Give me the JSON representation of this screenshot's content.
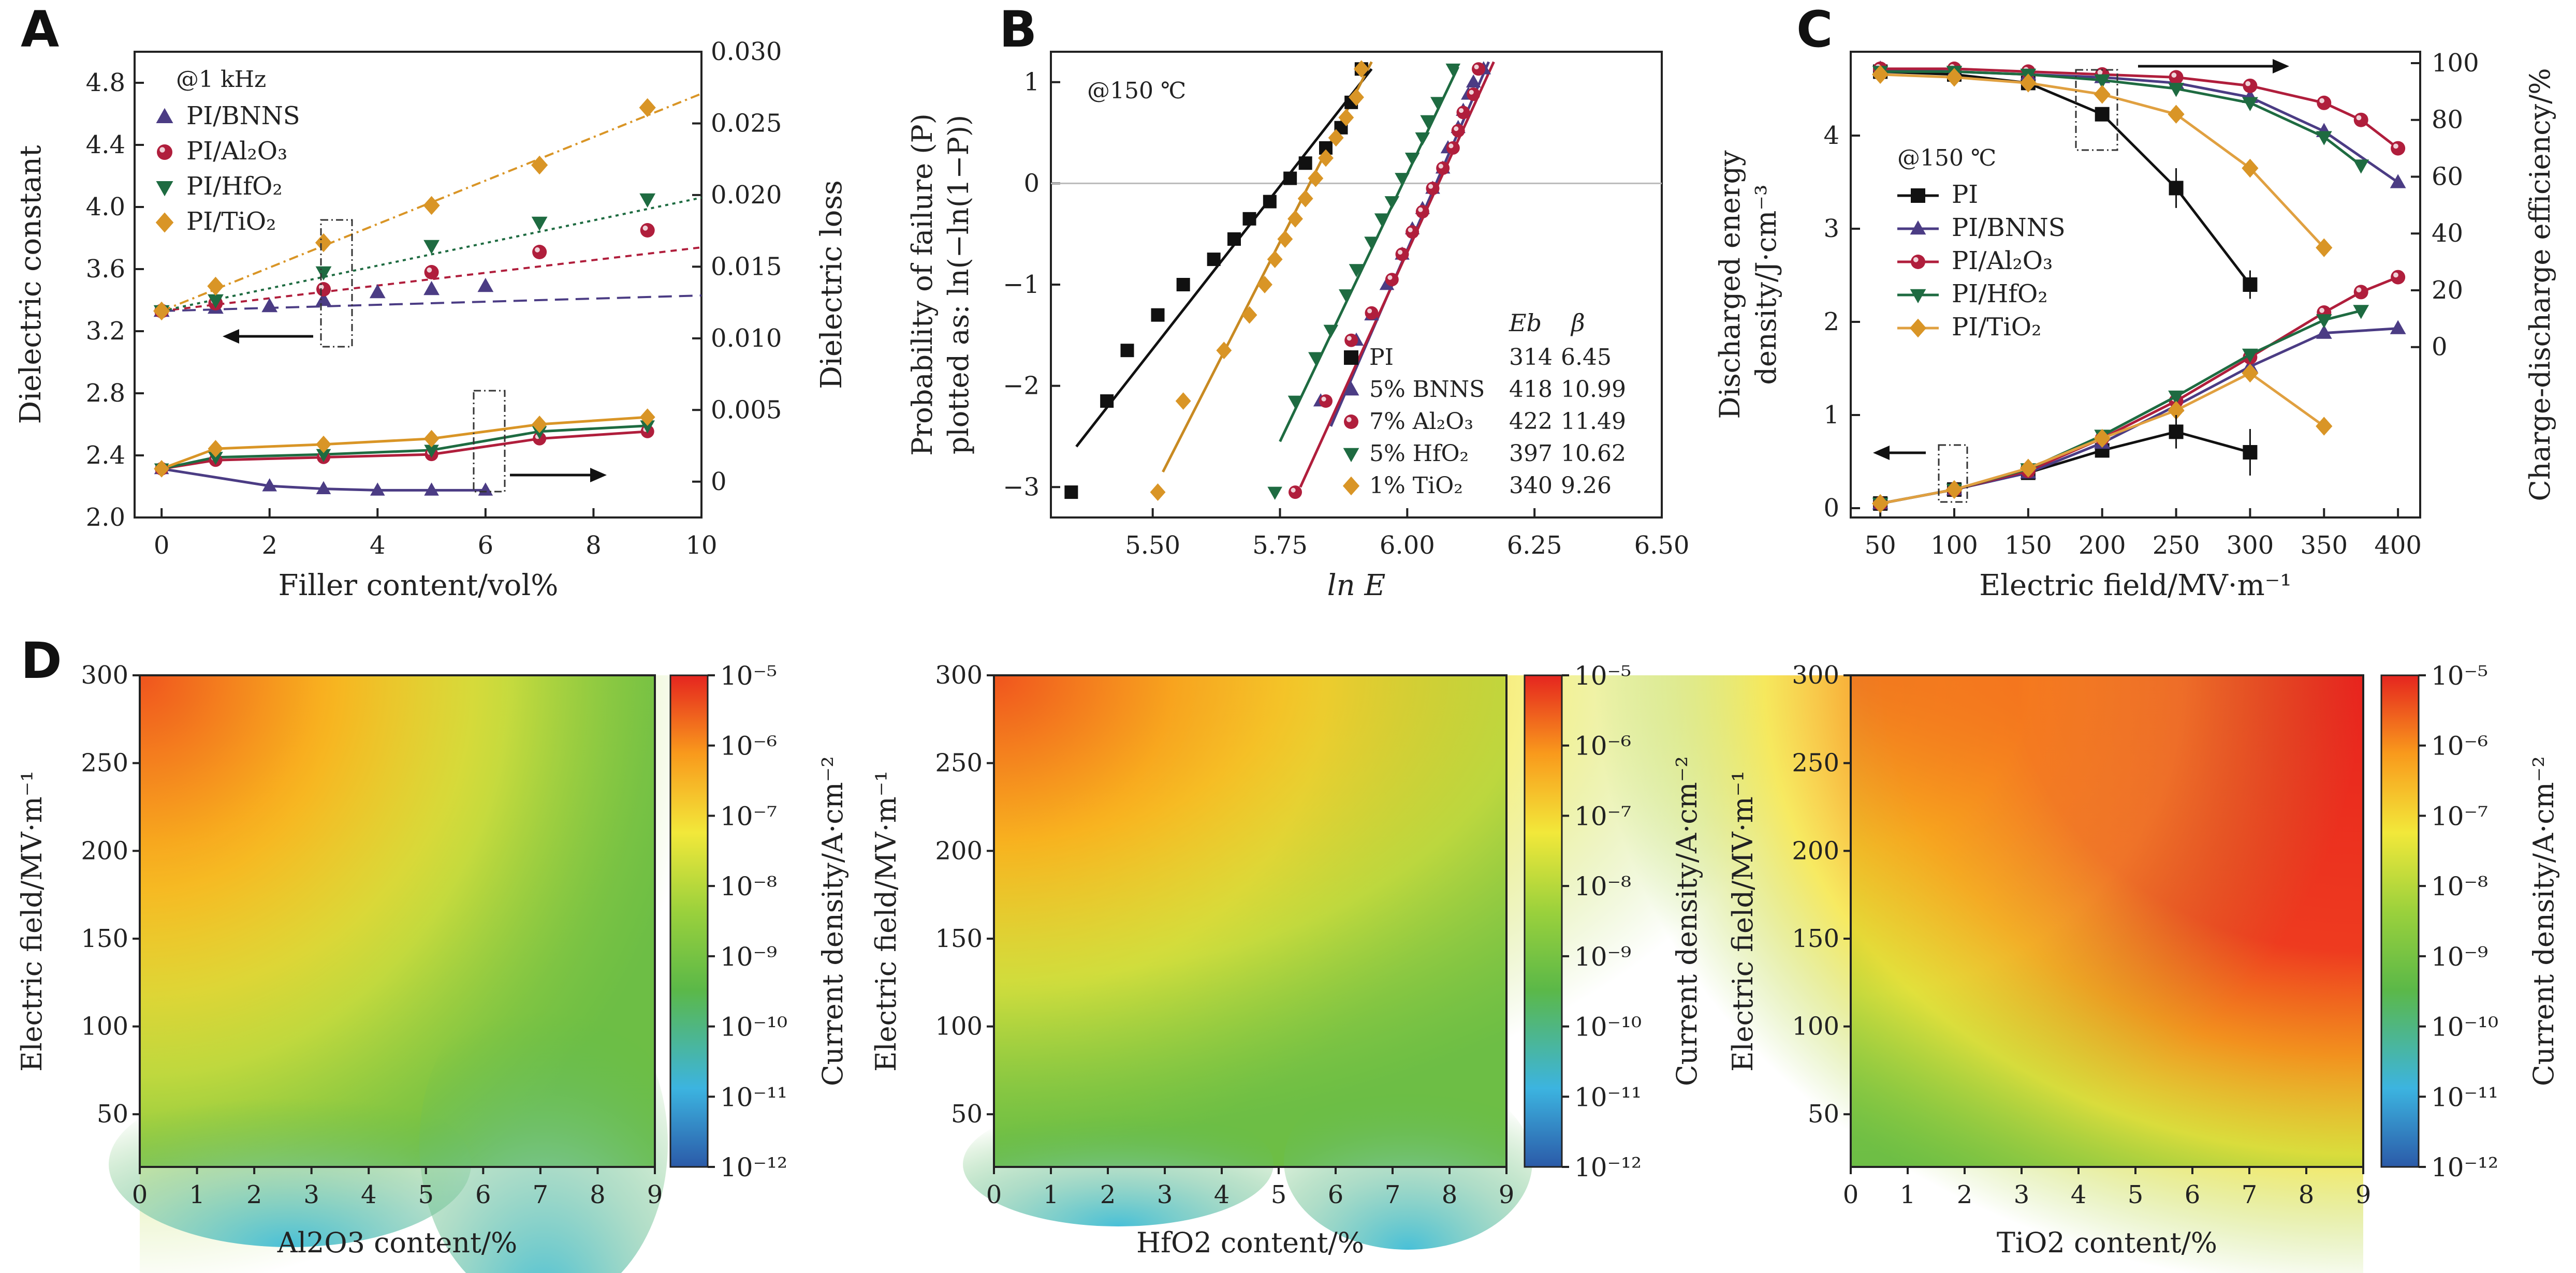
{
  "colors": {
    "PI": "#111111",
    "BNNS": "#4b3c84",
    "Al2O3": "#b01e3c",
    "HfO2": "#1e6b41",
    "TiO2": "#d99526"
  },
  "chart_data": [
    {
      "panel": "A",
      "type": "scatter",
      "title": "",
      "annotation": "@1 kHz",
      "xlabel": "Filler content/vol%",
      "ylabel_left": "Dielectric constant",
      "ylabel_right": "Dielectric loss",
      "xlim": [
        -0.5,
        10
      ],
      "ylim_left": [
        2.0,
        5.0
      ],
      "ylim_right": [
        -0.0025,
        0.03
      ],
      "xticks": [
        "0",
        "2",
        "4",
        "6",
        "8",
        "10"
      ],
      "yticks_left": [
        "2.0",
        "2.4",
        "2.8",
        "3.2",
        "3.6",
        "4.0",
        "4.4",
        "4.8"
      ],
      "yticks_right": [
        "0",
        "0.005",
        "0.010",
        "0.015",
        "0.020",
        "0.025",
        "0.030"
      ],
      "arrows": [
        "left arrow → left axis",
        "right arrow → right axis"
      ],
      "series_constant": [
        {
          "name": "PI/BNNS",
          "marker": "triangle",
          "x": [
            0,
            1,
            2,
            3,
            4,
            5,
            6
          ],
          "y": [
            3.33,
            3.35,
            3.36,
            3.4,
            3.45,
            3.47,
            3.49
          ],
          "fit": [
            3.33,
            3.43
          ]
        },
        {
          "name": "PI/Al2O3",
          "marker": "circle",
          "x": [
            0,
            1,
            3,
            5,
            7,
            9
          ],
          "y": [
            3.33,
            3.38,
            3.47,
            3.58,
            3.71,
            3.85
          ],
          "fit": [
            3.33,
            3.74
          ]
        },
        {
          "name": "PI/HfO2",
          "marker": "triangle-down",
          "x": [
            0,
            1,
            3,
            5,
            7,
            9
          ],
          "y": [
            3.33,
            3.4,
            3.58,
            3.75,
            3.9,
            4.05
          ],
          "fit": [
            3.33,
            4.06
          ]
        },
        {
          "name": "PI/TiO2",
          "marker": "diamond",
          "x": [
            0,
            1,
            3,
            5,
            7,
            9
          ],
          "y": [
            3.33,
            3.49,
            3.77,
            4.01,
            4.27,
            4.64
          ],
          "fit": [
            3.33,
            4.73
          ]
        }
      ],
      "series_loss": [
        {
          "name": "PI/BNNS",
          "x": [
            0,
            2,
            3,
            4,
            5,
            6
          ],
          "y": [
            0.0009,
            -0.0003,
            -0.0005,
            -0.0006,
            -0.0006,
            -0.0006
          ]
        },
        {
          "name": "PI/Al2O3",
          "x": [
            0,
            1,
            3,
            5,
            7,
            9
          ],
          "y": [
            0.0009,
            0.0015,
            0.0017,
            0.0019,
            0.003,
            0.0035
          ]
        },
        {
          "name": "PI/HfO2",
          "x": [
            0,
            1,
            3,
            5,
            7,
            9
          ],
          "y": [
            0.0009,
            0.0017,
            0.0019,
            0.0022,
            0.0035,
            0.0039
          ]
        },
        {
          "name": "PI/TiO2",
          "x": [
            0,
            1,
            3,
            5,
            7,
            9
          ],
          "y": [
            0.0009,
            0.0023,
            0.0026,
            0.003,
            0.004,
            0.0045
          ]
        }
      ]
    },
    {
      "panel": "B",
      "type": "scatter",
      "annotation": "@150 ℃",
      "xlabel": "ln E",
      "ylabel_line1": "Probability of failure (P)",
      "ylabel_line2": "plotted as: ln(−ln(1−P))",
      "xlim": [
        5.3,
        6.5
      ],
      "ylim": [
        -3.3,
        1.3
      ],
      "xticks": [
        "5.50",
        "5.75",
        "6.00",
        "6.25",
        "6.50"
      ],
      "yticks": [
        "−3",
        "−2",
        "−1",
        "0",
        "1"
      ],
      "table_header_eb": "Eb",
      "table_header_beta": "β",
      "series": [
        {
          "name": "PI",
          "label": "PI",
          "Eb": "314",
          "beta": "6.45",
          "marker": "square",
          "x": [
            5.34,
            5.41,
            5.45,
            5.51,
            5.56,
            5.62,
            5.66,
            5.69,
            5.73,
            5.77,
            5.8,
            5.84,
            5.87,
            5.89,
            5.91
          ],
          "y": [
            -3.05,
            -2.15,
            -1.65,
            -1.3,
            -1.0,
            -0.75,
            -0.55,
            -0.35,
            -0.18,
            0.05,
            0.2,
            0.35,
            0.55,
            0.8,
            1.13
          ],
          "fit_x": [
            5.35,
            5.93
          ],
          "fit_y": [
            -2.6,
            1.13
          ]
        },
        {
          "name": "PI/BNNS",
          "label": "5% BNNS",
          "Eb": "418",
          "beta": "10.99",
          "marker": "triangle",
          "x": [
            5.83,
            5.9,
            5.93,
            5.96,
            5.99,
            6.01,
            6.03,
            6.05,
            6.07,
            6.08,
            6.1,
            6.11,
            6.12,
            6.13,
            6.15
          ],
          "y": [
            -2.15,
            -1.55,
            -1.3,
            -1.0,
            -0.7,
            -0.45,
            -0.25,
            -0.05,
            0.15,
            0.35,
            0.55,
            0.72,
            0.88,
            1.0,
            1.13
          ],
          "fit_x": [
            5.85,
            6.16
          ],
          "fit_y": [
            -2.4,
            1.2
          ]
        },
        {
          "name": "PI/Al2O3",
          "label": "7% Al2O3",
          "Eb": "422",
          "beta": "11.49",
          "marker": "circle",
          "x": [
            5.78,
            5.84,
            5.89,
            5.93,
            5.97,
            5.99,
            6.01,
            6.03,
            6.05,
            6.07,
            6.09,
            6.1,
            6.11,
            6.13,
            6.14
          ],
          "y": [
            -3.05,
            -2.15,
            -1.55,
            -1.28,
            -0.95,
            -0.7,
            -0.48,
            -0.28,
            -0.05,
            0.15,
            0.35,
            0.52,
            0.7,
            0.88,
            1.13
          ],
          "fit_x": [
            5.79,
            6.17
          ],
          "fit_y": [
            -3.0,
            1.2
          ]
        },
        {
          "name": "PI/HfO2",
          "label": "5% HfO2",
          "Eb": "397",
          "beta": "10.62",
          "marker": "triangle-down",
          "x": [
            5.74,
            5.78,
            5.82,
            5.85,
            5.88,
            5.9,
            5.93,
            5.95,
            5.97,
            5.99,
            6.01,
            6.03,
            6.04,
            6.06,
            6.09
          ],
          "y": [
            -3.05,
            -2.15,
            -1.72,
            -1.45,
            -1.1,
            -0.85,
            -0.58,
            -0.35,
            -0.18,
            0.05,
            0.25,
            0.45,
            0.62,
            0.8,
            1.13
          ],
          "fit_x": [
            5.75,
            6.1
          ],
          "fit_y": [
            -2.55,
            1.15
          ]
        },
        {
          "name": "PI/TiO2",
          "label": "1% TiO2",
          "Eb": "340",
          "beta": "9.26",
          "marker": "diamond",
          "x": [
            5.51,
            5.56,
            5.64,
            5.69,
            5.72,
            5.74,
            5.76,
            5.78,
            5.8,
            5.82,
            5.84,
            5.86,
            5.88,
            5.9,
            5.91
          ],
          "y": [
            -3.05,
            -2.15,
            -1.65,
            -1.3,
            -1.0,
            -0.75,
            -0.55,
            -0.35,
            -0.15,
            0.05,
            0.25,
            0.45,
            0.65,
            0.85,
            1.13
          ],
          "fit_x": [
            5.52,
            5.93
          ],
          "fit_y": [
            -2.85,
            1.2
          ]
        }
      ]
    },
    {
      "panel": "C",
      "type": "line",
      "annotation": "@150 ℃",
      "xlabel": "Electric field/MV·m⁻¹",
      "ylabel_left_line1": "Discharged energy",
      "ylabel_left_line2": "density/J·cm⁻³",
      "ylabel_right": "Charge-discharge efficiency/%",
      "xlim": [
        30,
        415
      ],
      "ylim_left": [
        -0.1,
        4.9
      ],
      "ylim_right": [
        -60,
        104
      ],
      "xticks": [
        "50",
        "100",
        "150",
        "200",
        "250",
        "300",
        "350",
        "400"
      ],
      "yticks_left": [
        "0",
        "1",
        "2",
        "3",
        "4"
      ],
      "yticks_right": [
        "0",
        "20",
        "40",
        "60",
        "80",
        "100"
      ],
      "x": [
        50,
        100,
        150,
        200,
        250,
        300,
        350,
        375,
        400
      ],
      "energy": [
        {
          "name": "PI",
          "marker": "square",
          "x": [
            50,
            100,
            150,
            200,
            250,
            300
          ],
          "y": [
            0.05,
            0.2,
            0.38,
            0.62,
            0.82,
            0.6
          ]
        },
        {
          "name": "PI/BNNS",
          "marker": "triangle",
          "x": [
            50,
            100,
            150,
            200,
            250,
            300,
            350,
            400
          ],
          "y": [
            0.05,
            0.2,
            0.38,
            0.7,
            1.1,
            1.52,
            1.88,
            1.93
          ]
        },
        {
          "name": "PI/Al2O3",
          "marker": "circle",
          "x": [
            50,
            100,
            150,
            200,
            250,
            300,
            350,
            375,
            400
          ],
          "y": [
            0.05,
            0.2,
            0.4,
            0.75,
            1.15,
            1.62,
            2.1,
            2.32,
            2.48
          ]
        },
        {
          "name": "PI/HfO2",
          "marker": "triangle-down",
          "x": [
            50,
            100,
            150,
            200,
            250,
            300,
            350,
            375
          ],
          "y": [
            0.05,
            0.2,
            0.42,
            0.78,
            1.2,
            1.65,
            2.02,
            2.12
          ]
        },
        {
          "name": "PI/TiO2",
          "marker": "diamond",
          "x": [
            50,
            100,
            150,
            200,
            250,
            300,
            350
          ],
          "y": [
            0.05,
            0.2,
            0.43,
            0.75,
            1.05,
            1.45,
            0.88
          ]
        }
      ],
      "efficiency": [
        {
          "name": "PI",
          "x": [
            50,
            100,
            150,
            200,
            250,
            300
          ],
          "y": [
            97,
            96,
            93,
            82,
            56,
            22
          ]
        },
        {
          "name": "PI/BNNS",
          "x": [
            50,
            100,
            150,
            200,
            250,
            300,
            350,
            400
          ],
          "y": [
            98,
            97,
            96,
            95,
            93,
            88,
            76,
            58
          ]
        },
        {
          "name": "PI/Al2O3",
          "x": [
            50,
            100,
            150,
            200,
            250,
            300,
            350,
            375,
            400
          ],
          "y": [
            98,
            98,
            97,
            96,
            95,
            92,
            86,
            80,
            70
          ]
        },
        {
          "name": "PI/HfO2",
          "x": [
            50,
            100,
            150,
            200,
            250,
            300,
            350,
            375
          ],
          "y": [
            97,
            97,
            96,
            94,
            91,
            86,
            74,
            64
          ]
        },
        {
          "name": "PI/TiO2",
          "x": [
            50,
            100,
            150,
            200,
            250,
            300,
            350
          ],
          "y": [
            96,
            95,
            93,
            89,
            82,
            63,
            35
          ]
        }
      ]
    },
    {
      "panel": "D",
      "type": "heatmap",
      "maps": [
        {
          "xlabel": "Al2O3 content/%",
          "ylabel": "Electric field/MV·m⁻¹"
        },
        {
          "xlabel": "HfO2 content/%",
          "ylabel": "Electric field/MV·m⁻¹"
        },
        {
          "xlabel": "TiO2 content/%",
          "ylabel": "Electric field/MV·m⁻¹"
        }
      ],
      "xlim": [
        0,
        9
      ],
      "ylim": [
        20,
        300
      ],
      "xticks": [
        "0",
        "1",
        "2",
        "3",
        "4",
        "5",
        "6",
        "7",
        "8",
        "9"
      ],
      "yticks": [
        "50",
        "100",
        "150",
        "200",
        "250",
        "300"
      ],
      "colorbar_label": "Current density/A·cm⁻²",
      "colorbar_ticks": [
        "10⁻¹²",
        "10⁻¹¹",
        "10⁻¹⁰",
        "10⁻⁹",
        "10⁻⁸",
        "10⁻⁷",
        "10⁻⁶",
        "10⁻⁵"
      ]
    }
  ],
  "panels": {
    "A": "A",
    "B": "B",
    "C": "C",
    "D": "D"
  },
  "legendA": [
    "PI/BNNS",
    "PI/Al₂O₃",
    "PI/HfO₂",
    "PI/TiO₂"
  ],
  "legendB": [
    "PI",
    "5% BNNS",
    "7% Al₂O₃",
    "5% HfO₂",
    "1% TiO₂"
  ],
  "legendC": [
    "PI",
    "PI/BNNS",
    "PI/Al₂O₃",
    "PI/HfO₂",
    "PI/TiO₂"
  ]
}
